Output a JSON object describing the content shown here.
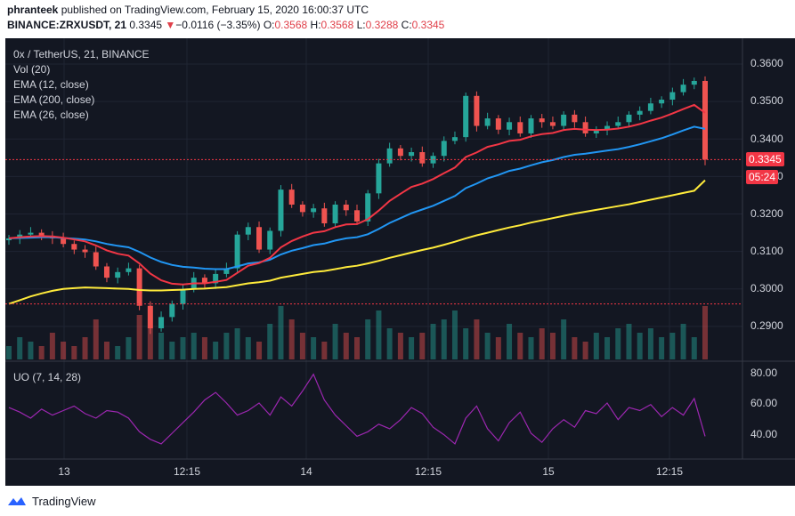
{
  "header": {
    "author": "phranteek",
    "published_text": "published on TradingView.com, February 15, 2020 16:00:37 UTC",
    "symbol": "BINANCE:ZRXUSDT, 21",
    "last": "0.3345",
    "change_arrow": "▼",
    "change": "−0.0116 (−3.35%)",
    "o_label": "O:",
    "o": "0.3568",
    "h_label": "H:",
    "h": "0.3568",
    "l_label": "L:",
    "l": "0.3288",
    "c_label": "C:",
    "c": "0.3345"
  },
  "legend": {
    "title": "0x / TetherUS, 21, BINANCE",
    "vol": "Vol (20)",
    "ema12": "EMA (12, close)",
    "ema200": "EMA (200, close)",
    "ema26": "EMA (26, close)",
    "uo": "UO (7, 14, 28)"
  },
  "badges": {
    "price": "0.3345",
    "countdown": "05:24"
  },
  "footer": {
    "brand": "TradingView"
  },
  "colors": {
    "background": "#131722",
    "up": "#26a69a",
    "down": "#ef5350",
    "ema12": "#f23645",
    "ema26": "#2196f3",
    "ema200": "#ffeb3b",
    "uo": "#9c27b0"
  },
  "chart_data": [
    {
      "type": "candlestick",
      "y_ticks": [
        "0.3600",
        "0.3500",
        "0.3400",
        "0.3300",
        "0.3200",
        "0.3100",
        "0.3000",
        "0.2900"
      ],
      "ylim": [
        0.286,
        0.364
      ],
      "x_ticks": [
        "13",
        "12:15",
        "14",
        "12:15",
        "15",
        "12:15"
      ],
      "price_line": 0.3345,
      "low_line": 0.296,
      "price_series": [
        0.3135,
        0.3145,
        0.315,
        0.3142,
        0.3135,
        0.312,
        0.3105,
        0.3098,
        0.306,
        0.303,
        0.3045,
        0.3055,
        0.2955,
        0.2895,
        0.2925,
        0.296,
        0.3,
        0.303,
        0.3015,
        0.304,
        0.3055,
        0.3145,
        0.3165,
        0.3105,
        0.3155,
        0.3265,
        0.3225,
        0.3205,
        0.3215,
        0.3175,
        0.3225,
        0.321,
        0.318,
        0.3255,
        0.3335,
        0.3375,
        0.3355,
        0.3365,
        0.3335,
        0.3355,
        0.3395,
        0.3405,
        0.3515,
        0.3435,
        0.3455,
        0.3425,
        0.3445,
        0.3415,
        0.3455,
        0.3445,
        0.3435,
        0.3465,
        0.3445,
        0.3415,
        0.3425,
        0.3435,
        0.3445,
        0.3465,
        0.3475,
        0.3495,
        0.3505,
        0.3525,
        0.3545,
        0.3555,
        0.3345
      ],
      "ema12": [
        0.3135,
        0.3138,
        0.314,
        0.3141,
        0.314,
        0.3137,
        0.3132,
        0.3127,
        0.3116,
        0.3103,
        0.3094,
        0.3089,
        0.3068,
        0.3041,
        0.3023,
        0.3014,
        0.3012,
        0.3015,
        0.3015,
        0.3019,
        0.3024,
        0.3043,
        0.3062,
        0.3069,
        0.3083,
        0.3111,
        0.3128,
        0.314,
        0.315,
        0.3154,
        0.3165,
        0.3172,
        0.3173,
        0.3186,
        0.3209,
        0.3235,
        0.3254,
        0.3272,
        0.3281,
        0.3293,
        0.3309,
        0.3324,
        0.3352,
        0.3364,
        0.3379,
        0.3386,
        0.3395,
        0.3398,
        0.3407,
        0.3413,
        0.3416,
        0.3424,
        0.3427,
        0.3425,
        0.3424,
        0.3425,
        0.3428,
        0.3433,
        0.344,
        0.3449,
        0.3457,
        0.3468,
        0.348,
        0.3491,
        0.347
      ],
      "ema26": [
        0.3135,
        0.3136,
        0.3137,
        0.3138,
        0.3138,
        0.3136,
        0.3134,
        0.3132,
        0.3127,
        0.312,
        0.3115,
        0.3111,
        0.3099,
        0.3084,
        0.3072,
        0.3064,
        0.3059,
        0.3057,
        0.3054,
        0.3053,
        0.3053,
        0.306,
        0.3068,
        0.3071,
        0.3078,
        0.3092,
        0.3102,
        0.3109,
        0.3117,
        0.3121,
        0.3129,
        0.3135,
        0.3138,
        0.3146,
        0.316,
        0.3176,
        0.3189,
        0.3202,
        0.3212,
        0.3222,
        0.3235,
        0.3248,
        0.3269,
        0.3281,
        0.3295,
        0.3304,
        0.3315,
        0.3321,
        0.333,
        0.3338,
        0.3344,
        0.3352,
        0.3358,
        0.3361,
        0.3365,
        0.3369,
        0.3373,
        0.3379,
        0.3386,
        0.3394,
        0.3402,
        0.3412,
        0.3423,
        0.3433,
        0.3427
      ],
      "ema200": [
        0.296,
        0.297,
        0.298,
        0.2988,
        0.2995,
        0.3,
        0.3002,
        0.3004,
        0.3003,
        0.3002,
        0.3001,
        0.3,
        0.2997,
        0.2996,
        0.2996,
        0.2997,
        0.2998,
        0.3,
        0.3001,
        0.3003,
        0.3005,
        0.301,
        0.3015,
        0.3018,
        0.3022,
        0.303,
        0.3035,
        0.304,
        0.3045,
        0.3048,
        0.3053,
        0.3058,
        0.3062,
        0.3068,
        0.3075,
        0.3083,
        0.309,
        0.3097,
        0.3104,
        0.311,
        0.3118,
        0.3126,
        0.3135,
        0.3143,
        0.315,
        0.3157,
        0.3164,
        0.317,
        0.3177,
        0.3183,
        0.3189,
        0.3195,
        0.3201,
        0.3206,
        0.3211,
        0.3216,
        0.3221,
        0.3226,
        0.3232,
        0.3238,
        0.3244,
        0.325,
        0.3256,
        0.3262,
        0.329
      ]
    },
    {
      "type": "bar",
      "series_label": "Vol (20)",
      "values": [
        3,
        5,
        4,
        3,
        6,
        4,
        3,
        5,
        9,
        4,
        3,
        5,
        10,
        7,
        6,
        4,
        5,
        6,
        5,
        4,
        6,
        7,
        5,
        4,
        8,
        12,
        9,
        6,
        5,
        4,
        8,
        6,
        5,
        9,
        11,
        7,
        6,
        5,
        6,
        8,
        9,
        11,
        7,
        9,
        6,
        5,
        8,
        6,
        5,
        7,
        6,
        9,
        5,
        4,
        6,
        5,
        7,
        8,
        6,
        7,
        5,
        6,
        8,
        5,
        12
      ]
    },
    {
      "type": "line",
      "series_label": "UO (7, 14, 28)",
      "y_ticks": [
        "80.00",
        "60.00",
        "40.00"
      ],
      "ylim": [
        24,
        86
      ],
      "values": [
        57,
        54,
        50,
        56,
        52,
        55,
        58,
        53,
        50,
        55,
        54,
        50,
        41,
        36,
        33,
        40,
        47,
        54,
        62,
        67,
        60,
        52,
        55,
        60,
        52,
        64,
        58,
        68,
        79,
        62,
        52,
        45,
        38,
        41,
        46,
        43,
        49,
        57,
        53,
        44,
        39,
        33,
        50,
        58,
        43,
        35,
        47,
        54,
        40,
        34,
        43,
        49,
        44,
        55,
        53,
        60,
        49,
        57,
        55,
        59,
        51,
        57,
        52,
        63,
        38
      ]
    }
  ]
}
